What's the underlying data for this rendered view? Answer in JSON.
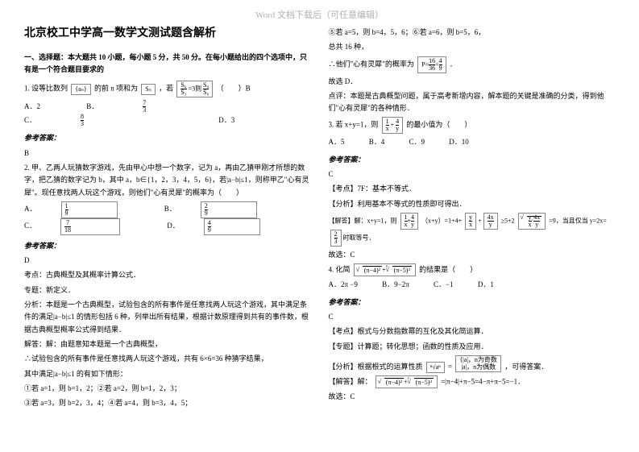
{
  "watermark": "Word 文档下载后（可任意编辑）",
  "title": "北京校工中学高一数学文测试题含解析",
  "section1": "一、选择题：本大题共 10 小题，每小题 5 分，共 50 分。在每小题给出的四个选项中，只有是一个符合题目要求的",
  "q1": {
    "stem_a": "1. 设等比数列",
    "stem_b": "的前 n 项和为",
    "stem_c": "，若",
    "stem_d": "（　　）B",
    "box_an": "{aₙ}",
    "box_sn": "Sₙ",
    "box_eq_num": "S₆",
    "box_eq_den": "S₃",
    "box_eq_rhs_n": "S₉",
    "box_eq_rhs_d": "S₆",
    "eq_mid": "=3则",
    "choices": {
      "A": "A．2",
      "B": "B．",
      "Bv_n": "7",
      "Bv_d": "3",
      "C": "C．",
      "Cv_n": "8",
      "Cv_d": "3",
      "D": "D．3"
    }
  },
  "ans_label": "参考答案：",
  "q1_ans": "B",
  "q2": {
    "line1": "2. 甲、乙两人玩猜数字游戏，先由甲心中想一个数字，记为 a，再由乙猜甲刚才所想的数字，把乙猜的数字记为 b，其中 a，b∈{1，2，3，4，5，6}，若|a−b|≤1，则称甲乙\"心有灵犀\"。现任意找两人玩这个游戏，则他们\"心有灵犀\"的概率为（　　）",
    "choices": {
      "A": "A．",
      "An": "1",
      "Ad": "9",
      "B": "B．",
      "Bn": "2",
      "Bd": "9",
      "C": "C．",
      "Cn": "7",
      "Cd": "18",
      "D": "D．",
      "Dn": "4",
      "Dd": "9"
    }
  },
  "q2_ans": "D",
  "q2_kd": "考点：古典概型及其概率计算公式．",
  "q2_zt": "专题：新定义．",
  "q2_fx": "分析：本题是一个古典概型，试验包含的所有事件是任意找两人玩这个游戏，其中满足条件的满足|a−b|≤1 的情形包括 6 种，列举出所有结果，根据计数原理得到共有的事件数，根据古典概型概率公式得到结果．",
  "q2_jd1": "解答：解：由题意知本题是一个古典概型，",
  "q2_jd2": "∴试验包含的所有事件是任意找两人玩这个游戏，共有 6×6=36 种猜字结果，",
  "q2_jd3": "其中满足|a−b|≤1 的有如下情形：",
  "q2_jd4": "①若 a=1，则 b=1，2；②若 a=2，则 b=1，2，3；",
  "q2_jd5": "③若 a=3，则 b=2，3，4；④若 a=4，则 b=3，4，5；",
  "right": {
    "r1": "⑤若 a=5，则 b=4，5，6；⑥若 a=6，则 b=5，6，",
    "r2": "总共 16 种，",
    "r3a": "∴他们\"心有灵犀\"的概率为",
    "r3_pn": "16",
    "r3_pd": "36",
    "r3_eqn": "4",
    "r3_eqd": "9",
    "r3b": "．",
    "r4": "故选 D．",
    "r5": "点评：本题是古典概型问题，属于高考新增内容，解本题的关键是准确的分类，得到他们\"心有灵犀\"的各种情形．"
  },
  "q3": {
    "stem_a": "3. 若 x+y=1，则",
    "box_n": "1",
    "box_d": "4",
    "box_mid": " + ",
    "box_x": "x",
    "box_y": "y",
    "stem_b": "的最小值为（　　）",
    "choices": {
      "A": "A．5",
      "B": "B．4",
      "C": "C．9",
      "D": "D．10"
    }
  },
  "q3_ans": "C",
  "q3_kd": "【考点】7F：基本不等式．",
  "q3_fx": "【分析】利用基本不等式的性质即可得出．",
  "q3_jd_a": "【解答】解：x+y=1，则",
  "q3_jd_boxes": {
    "b1n": "1",
    "b1d": "x",
    "plus": "+",
    "b2n": "4",
    "b2d": "y",
    "eq": "（x+y）=1+4+",
    "b3n": "y",
    "b3d": "x",
    "b4n": "4x",
    "b4d": "y",
    "ge": "≥5+2",
    "sqrt_inner_n": "y",
    "sqrt_inner_d": "x",
    "dot": "·",
    "sqrt_inner2_n": "4x",
    "sqrt_inner2_d": "y",
    "tail": "=9，当且仅当 y=2x="
  },
  "q3_jd_tail2n": "2",
  "q3_jd_tail2d": "3",
  "q3_jd_b": "时取等号．",
  "q3_gx": "故选：C",
  "q4": {
    "stem_a": "4. 化简",
    "box_outer_l": "(π−4)²",
    "root3": "³",
    "box_inner": "(π−5)³",
    "stem_b": "的结果是（　　）",
    "choices": {
      "A": "A．2π −9",
      "B": "B．9−2π",
      "C": "C．−1",
      "D": "D．1"
    }
  },
  "q4_ans": "C",
  "q4_kd": "【考点】根式与分数指数幂的互化及其化简运算．",
  "q4_zt": "【专题】计算题；转化思想；函数的性质及应用．",
  "q4_fx_a": "【分析】根据根式的运算性质",
  "q4_fx_box1": "ⁿ√aⁿ",
  "q4_fx_mid": "=",
  "q4_fx_box2a": "|a|，n为奇数",
  "q4_fx_box2b": "|a|，n为偶数",
  "q4_fx_b": "，可得答案．",
  "q4_jd_a": "【解答】解：",
  "q4_jd_b": "=|π−4|+π−5=4−π+π−5=−1．",
  "q4_gx": "故选：C"
}
